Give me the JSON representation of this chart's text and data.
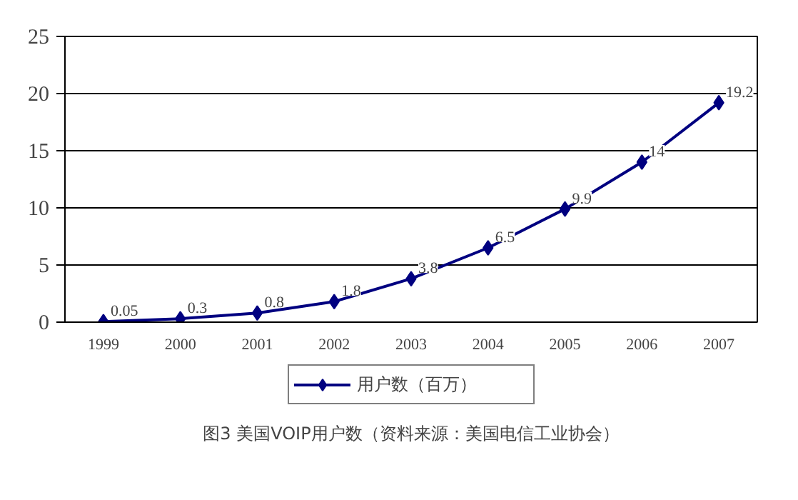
{
  "chart_data": {
    "type": "line",
    "categories": [
      "1999",
      "2000",
      "2001",
      "2002",
      "2003",
      "2004",
      "2005",
      "2006",
      "2007"
    ],
    "series": [
      {
        "name": "用户数（百万）",
        "color": "#000080",
        "values": [
          0.05,
          0.3,
          0.8,
          1.8,
          3.8,
          6.5,
          9.9,
          14,
          19.2
        ]
      }
    ],
    "ylim": [
      0,
      25
    ],
    "yticks": [
      0,
      5,
      10,
      15,
      20,
      25
    ],
    "grid": "y",
    "legend": "bottom",
    "marker": "diamond",
    "line_style": "solid",
    "data_labels": true,
    "annotations": [
      "图3 美国VOIP用户数（资料来源：美国电信工业协会）"
    ]
  }
}
